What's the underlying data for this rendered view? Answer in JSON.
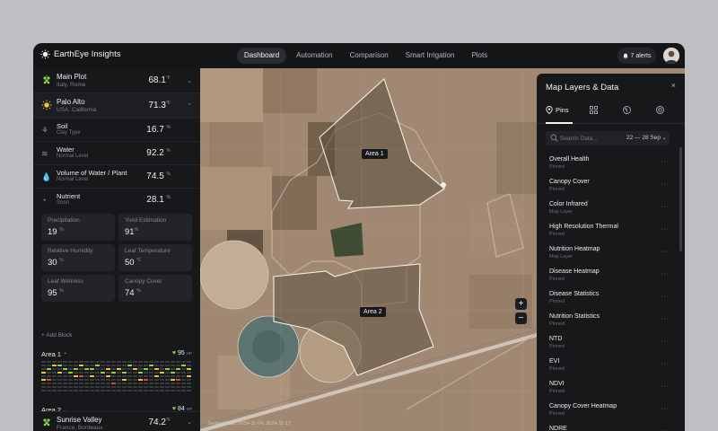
{
  "app": {
    "name": "EarthEye Insights"
  },
  "nav": [
    {
      "label": "Dashboard",
      "active": true
    },
    {
      "label": "Automation",
      "active": false
    },
    {
      "label": "Comparison",
      "active": false
    },
    {
      "label": "Smart Irrigation",
      "active": false
    },
    {
      "label": "Plots",
      "active": false
    }
  ],
  "alerts": {
    "label": "7 alerts"
  },
  "plots": [
    {
      "name": "Main Plot",
      "location": "Italy, Rome",
      "value": "68.1",
      "unit": "°F",
      "icon": "grape-icon"
    },
    {
      "name": "Palo Alto",
      "location": "USA, California",
      "value": "71.3",
      "unit": "°F",
      "icon": "sun-icon"
    },
    {
      "name": "Sunrise Valley",
      "location": "France, Bordeaux",
      "value": "74.2",
      "unit": "°F",
      "icon": "grape-icon"
    }
  ],
  "metrics": [
    {
      "name": "Soil",
      "sub": "Clay Type",
      "value": "16.7",
      "unit": "%",
      "icon": "plant-icon"
    },
    {
      "name": "Water",
      "sub": "Normal Level",
      "value": "92.2",
      "unit": "%",
      "icon": "waves-icon"
    },
    {
      "name": "Volume of Water / Plant",
      "sub": "Normal Level",
      "value": "74.5",
      "unit": "%",
      "icon": "drop-icon"
    },
    {
      "name": "Nutrient",
      "sub": "Soon",
      "value": "28.1",
      "unit": "%",
      "icon": "nutrient-icon"
    }
  ],
  "cards": [
    {
      "label": "Precipitation",
      "value": "19",
      "unit": "%"
    },
    {
      "label": "Yield Estimation",
      "value": "91",
      "unit": "%"
    },
    {
      "label": "Relative Humidity",
      "value": "30",
      "unit": "%"
    },
    {
      "label": "Leaf Temperature",
      "value": "50",
      "unit": "°F"
    },
    {
      "label": "Leaf Wetness",
      "value": "95",
      "unit": "%"
    },
    {
      "label": "Canopy Cover",
      "value": "74",
      "unit": "%"
    }
  ],
  "add_block": "+ Add Block",
  "areas": [
    {
      "name": "Area 1",
      "score": "95",
      "score_unit": "HP"
    },
    {
      "name": "Area 2",
      "score": "84",
      "score_unit": "HP"
    }
  ],
  "map": {
    "area_labels": [
      "Area 1",
      "Area 2"
    ],
    "zoom_in": "+",
    "zoom_out": "−",
    "source": "Sentinel Hub: 2024-11-04, 2024-11-17"
  },
  "panel": {
    "title": "Map Layers & Data",
    "close": "×",
    "tabs": [
      {
        "label": "Pins",
        "icon": "pin-icon",
        "active": true
      },
      {
        "label": "",
        "icon": "grid-icon",
        "active": false
      },
      {
        "label": "",
        "icon": "sprout-icon",
        "active": false
      },
      {
        "label": "",
        "icon": "target-icon",
        "active": false
      }
    ],
    "search_placeholder": "Search Data...",
    "date_range": "22 — 28 Sep",
    "layers": [
      {
        "name": "Overall Health",
        "status": "Pinned"
      },
      {
        "name": "Canopy Cover",
        "status": "Pinned"
      },
      {
        "name": "Color Infrared",
        "status": "Map Layer"
      },
      {
        "name": "High Resolution Thermal",
        "status": "Pinned"
      },
      {
        "name": "Nutrition Heatmap",
        "status": "Map Layer"
      },
      {
        "name": "Disease Heatmap",
        "status": "Pinned"
      },
      {
        "name": "Disease Statistics",
        "status": "Pinned"
      },
      {
        "name": "Nutrition Statistics",
        "status": "Pinned"
      },
      {
        "name": "NTD",
        "status": "Pinned"
      },
      {
        "name": "EVI",
        "status": "Pinned"
      },
      {
        "name": "NDVI",
        "status": "Pinned"
      },
      {
        "name": "Canopy Cover Heatmap",
        "status": "Pinned"
      },
      {
        "name": "NDRE",
        "status": "Pinned"
      }
    ]
  },
  "colors": {
    "accent_green": "#8fd14f",
    "bar_yellow": "#f2c230",
    "bar_red": "#e2443a",
    "bar_green": "#8fd14f",
    "bar_dim": "#3a3b3e"
  }
}
